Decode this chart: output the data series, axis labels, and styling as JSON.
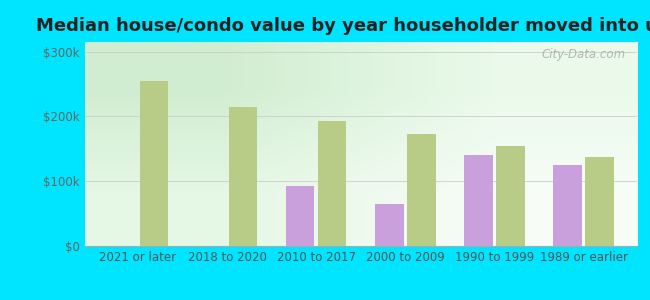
{
  "title": "Median house/condo value by year householder moved into unit",
  "categories": [
    "2021 or later",
    "2018 to 2020",
    "2010 to 2017",
    "2000 to 2009",
    "1990 to 1999",
    "1989 or earlier"
  ],
  "kennedy_values": [
    null,
    null,
    93000,
    65000,
    140000,
    125000
  ],
  "alabama_values": [
    255000,
    215000,
    193000,
    173000,
    155000,
    138000
  ],
  "kennedy_color": "#c9a0dc",
  "alabama_color": "#b8cc88",
  "background_color": "#00e5ff",
  "ylabel_ticks": [
    "$0",
    "$100k",
    "$200k",
    "$300k"
  ],
  "ytick_values": [
    0,
    100000,
    200000,
    300000
  ],
  "ylim": [
    0,
    315000
  ],
  "bar_width": 0.32,
  "title_fontsize": 13,
  "tick_fontsize": 8.5,
  "legend_fontsize": 10,
  "watermark_text": "City-Data.com"
}
